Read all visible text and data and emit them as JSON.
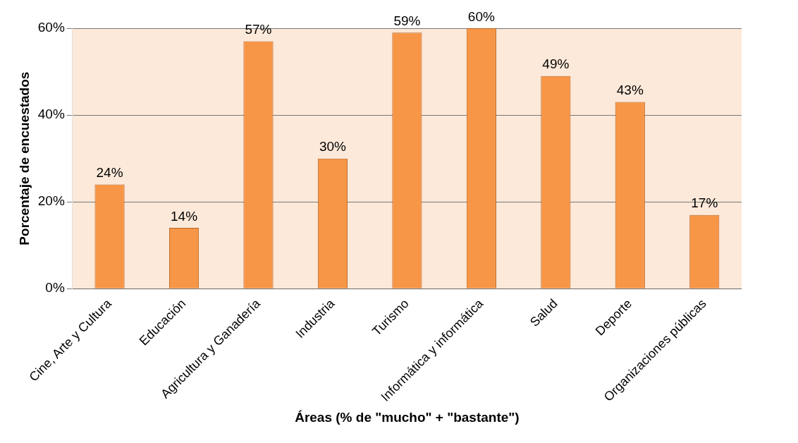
{
  "chart_data": {
    "type": "bar",
    "xlabel": "Áreas (% de \"mucho\" + \"bastante\")",
    "ylabel": "Porcentaje de encuestados",
    "categories": [
      "Cine, Arte y Cultura",
      "Educación",
      "Agricultura y Ganadería",
      "Industria",
      "Turismo",
      "Informática y informática",
      "Salud",
      "Deporte",
      "Organizaciones públicas"
    ],
    "values": [
      24,
      14,
      57,
      30,
      59,
      60,
      49,
      43,
      17
    ],
    "value_labels": [
      "24%",
      "14%",
      "57%",
      "30%",
      "59%",
      "60%",
      "49%",
      "43%",
      "17%"
    ],
    "color": "#f79646",
    "ylim": [
      0,
      60
    ],
    "yticks": [
      {
        "value": 0,
        "label": "0%"
      },
      {
        "value": 20,
        "label": "20%"
      },
      {
        "value": 40,
        "label": "40%"
      },
      {
        "value": 60,
        "label": "60%"
      }
    ],
    "grid": "y",
    "legend": false
  }
}
